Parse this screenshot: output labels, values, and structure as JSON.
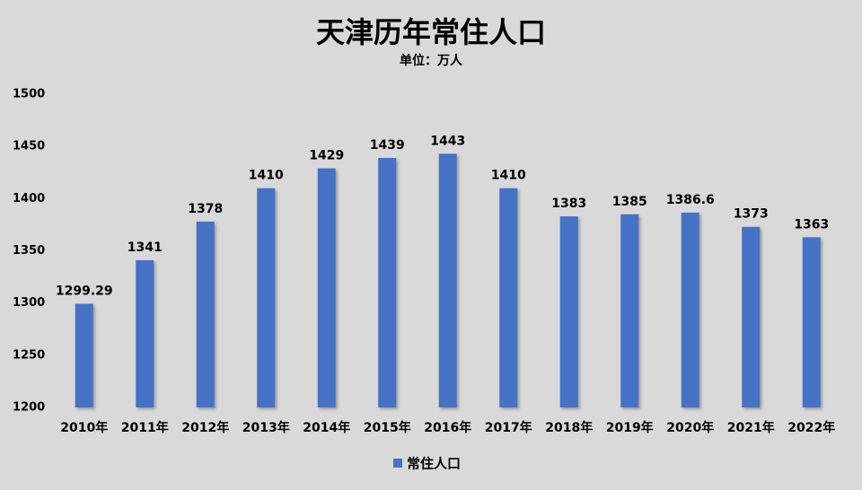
{
  "chart_data": {
    "type": "bar",
    "title": "天津历年常住人口",
    "subtitle": "单位：万人",
    "categories": [
      "2010年",
      "2011年",
      "2012年",
      "2013年",
      "2014年",
      "2015年",
      "2016年",
      "2017年",
      "2018年",
      "2019年",
      "2020年",
      "2021年",
      "2022年"
    ],
    "series": [
      {
        "name": "常住人口",
        "color": "#4472c4",
        "values": [
          1299.29,
          1341,
          1378,
          1410,
          1429,
          1439,
          1443,
          1410,
          1383,
          1385,
          1386.6,
          1373,
          1363
        ]
      }
    ],
    "ylim": [
      1200,
      1500
    ],
    "yticks": [
      1200,
      1250,
      1300,
      1350,
      1400,
      1450,
      1500
    ],
    "grid": false,
    "legend": "bottom"
  }
}
